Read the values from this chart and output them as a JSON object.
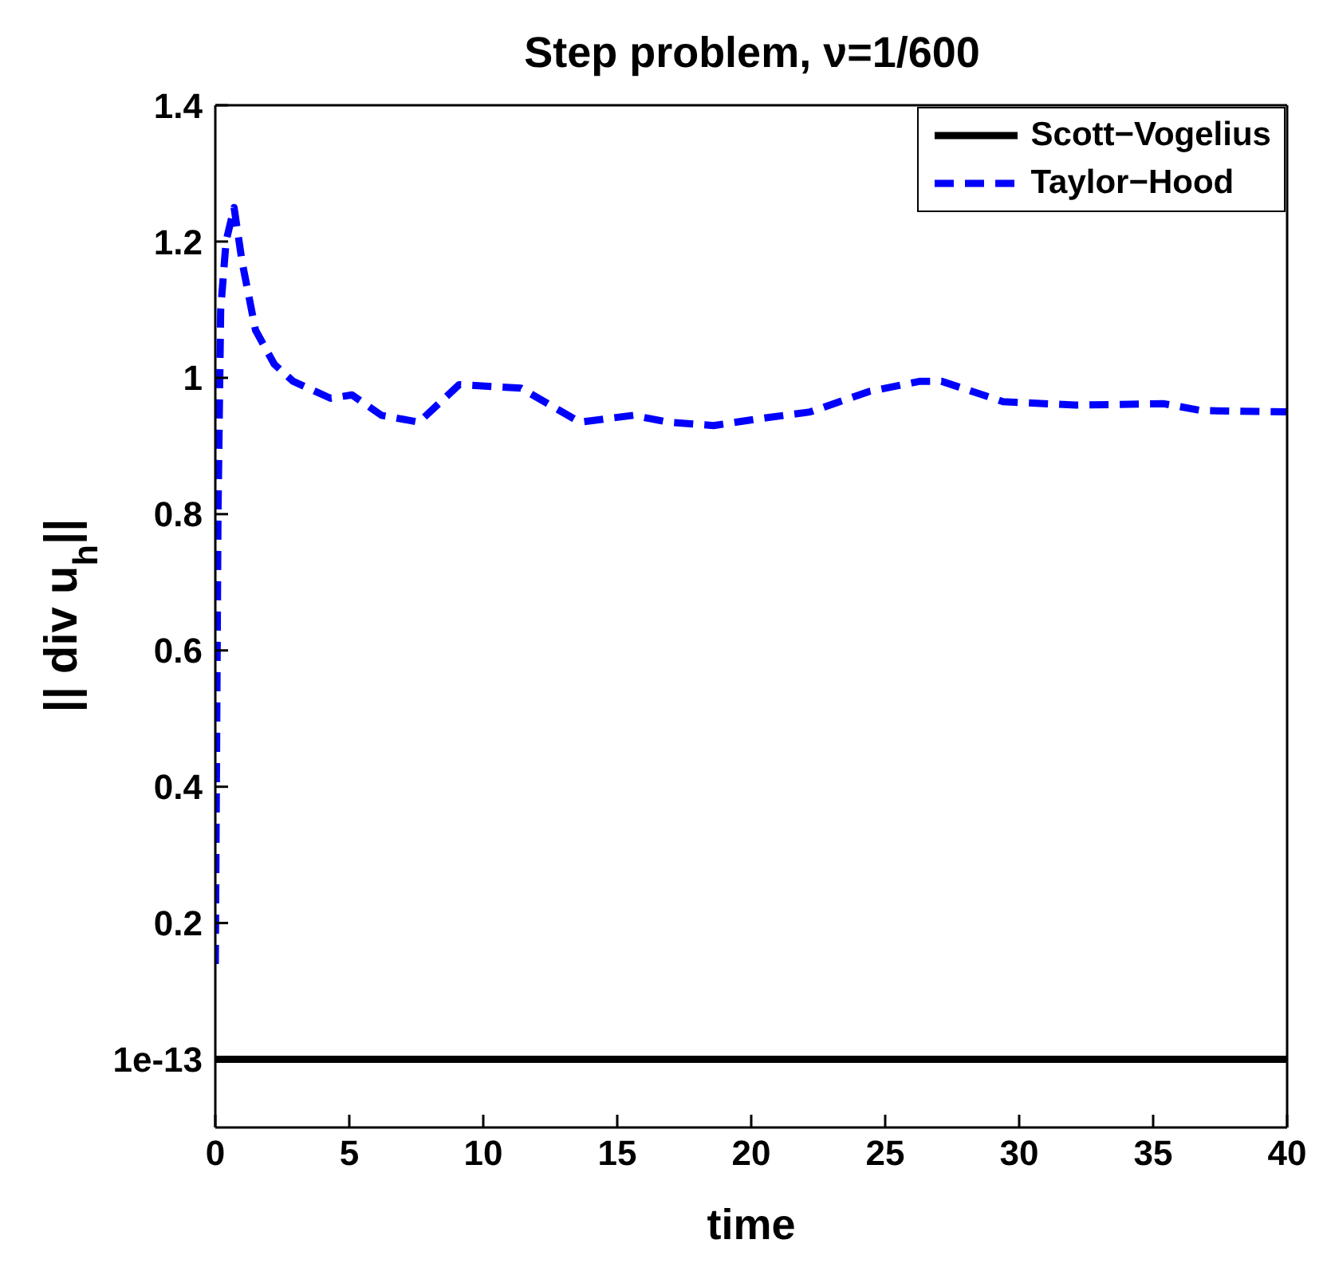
{
  "chart_data": {
    "type": "line",
    "title": "Step problem, ν=1/600",
    "xlabel": "time",
    "ylabel": "|| div u$_{h}$||",
    "xlim": [
      0,
      40
    ],
    "xticks": [
      0,
      5,
      10,
      15,
      20,
      25,
      30,
      35,
      40
    ],
    "ylim": [
      -0.1,
      1.4
    ],
    "yticks": [
      {
        "value": 1e-13,
        "label": "1e-13"
      },
      0.2,
      0.4,
      0.6,
      0.8,
      1,
      1.2,
      1.4
    ],
    "legend": "top right",
    "marker": "none",
    "series": [
      {
        "name": "Scott−Vogelius",
        "color": "#000000",
        "line_style": "solid",
        "x": [
          0,
          40
        ],
        "values": [
          1e-13,
          1e-13
        ]
      },
      {
        "name": "Taylor−Hood",
        "color": "#0000ff",
        "line_style": "dashed",
        "x": [
          0,
          0.1,
          0.2,
          0.4,
          0.7,
          1.0,
          1.5,
          2.2,
          2.9,
          4.3,
          5.1,
          6.2,
          7.6,
          9.1,
          11.4,
          13.6,
          15.6,
          16.9,
          18.6,
          20.3,
          22.2,
          24.4,
          26.3,
          27.1,
          29.4,
          32.1,
          35.4,
          36.8,
          40
        ],
        "values": [
          0.14,
          0.8,
          1.1,
          1.2,
          1.25,
          1.17,
          1.07,
          1.02,
          0.995,
          0.97,
          0.975,
          0.945,
          0.935,
          0.99,
          0.985,
          0.935,
          0.945,
          0.935,
          0.93,
          0.94,
          0.95,
          0.98,
          0.995,
          0.995,
          0.965,
          0.96,
          0.962,
          0.952,
          0.95
        ]
      }
    ]
  }
}
